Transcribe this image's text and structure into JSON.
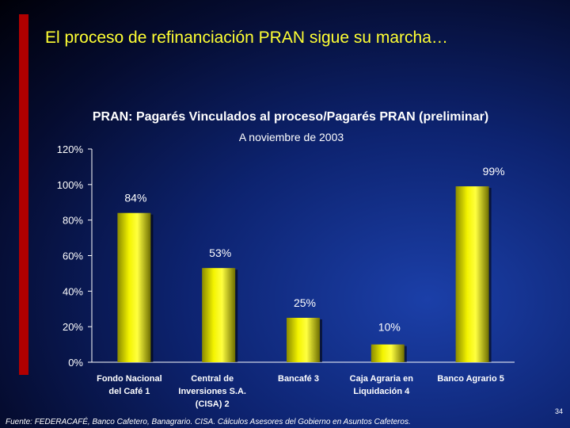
{
  "slide": {
    "title": "El proceso de refinanciación PRAN sigue su marcha…",
    "source": "Fuente: FEDERACAFÉ, Banco Cafetero, Banagrario. CISA. Cálculos Asesores del Gobierno en Asuntos Cafeteros.",
    "page_number": "34"
  },
  "colors": {
    "title": "#ffff33",
    "accent_bar": "#b00000",
    "bar_fill": "#e8e800",
    "text": "#ffffff"
  },
  "chart_data": {
    "type": "bar",
    "title": "PRAN: Pagarés Vinculados al proceso/Pagarés PRAN (preliminar)",
    "subtitle": "A noviembre de 2003",
    "categories": [
      [
        "Fondo Nacional",
        "del Café 1"
      ],
      [
        "Central de",
        "Inversiones S.A.",
        "(CISA) 2"
      ],
      [
        "Bancafé 3"
      ],
      [
        "Caja Agraria en",
        "Liquidación 4"
      ],
      [
        "Banco Agrario 5"
      ]
    ],
    "values": [
      84,
      53,
      25,
      10,
      99
    ],
    "data_labels": [
      "84%",
      "53%",
      "25%",
      "10%",
      "99%"
    ],
    "ylim": [
      0,
      120
    ],
    "yticks": [
      0,
      20,
      40,
      60,
      80,
      100,
      120
    ],
    "ytick_labels": [
      "0%",
      "20%",
      "40%",
      "60%",
      "80%",
      "100%",
      "120%"
    ],
    "grid": false,
    "legend": "none"
  }
}
